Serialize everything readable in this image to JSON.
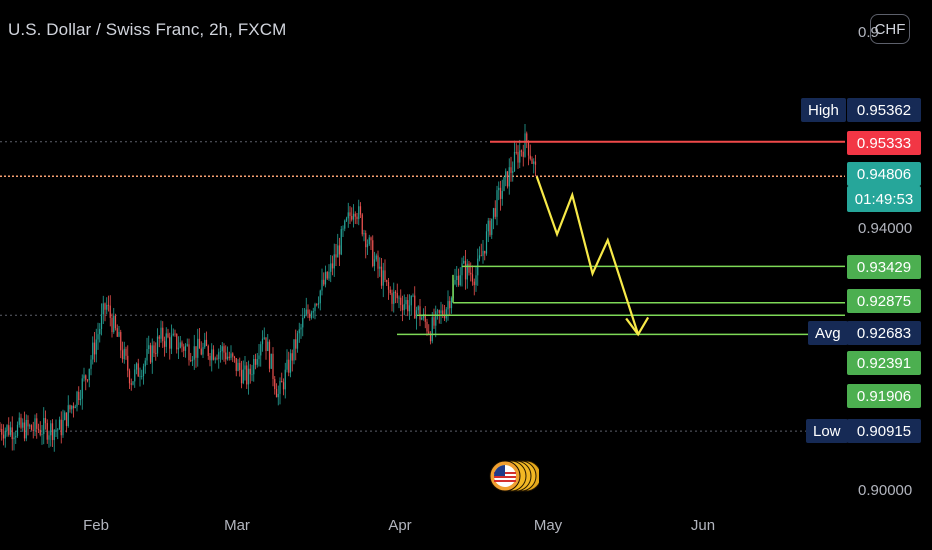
{
  "header": {
    "title": "U.S. Dollar / Swiss Franc, 2h, FXCM",
    "currency_button": "CHF"
  },
  "price_axis": {
    "visible_ticks": [
      "0.94000",
      "0.90000"
    ],
    "partial_top": "0.9",
    "partial_ticks_count_hidden": true
  },
  "labels": {
    "high_tag": "High",
    "high_value": "0.95362",
    "red_value": "0.95333",
    "current_value": "0.94806",
    "countdown": "01:49:53",
    "level1": "0.93429",
    "level2": "0.92875",
    "avg_tag": "Avg",
    "avg_value": "0.92683",
    "level3": "0.92391",
    "level4": "0.91906",
    "low_tag": "Low",
    "low_value": "0.90915"
  },
  "colors": {
    "background": "#000000",
    "up_candle": "#26a69a",
    "down_candle": "#ef5350",
    "level_line": "#7ed957",
    "resistance_line": "#f04a4a",
    "current_price_line": "#f7a072",
    "forecast_arrow": "#f7e948",
    "green_label": "#4caf50",
    "teal_label": "#26a69a",
    "red_label": "#f23645",
    "navy_tag": "#162a55"
  },
  "chart_data": {
    "type": "candlestick",
    "title": "U.S. Dollar / Swiss Franc, 2h, FXCM",
    "x_months": [
      "Feb",
      "Mar",
      "Apr",
      "May",
      "Jun"
    ],
    "y_range": [
      0.8985,
      0.9595
    ],
    "key_prices": {
      "high": 0.95362,
      "resistance": 0.95333,
      "current": 0.94806,
      "support_1": 0.93429,
      "support_2": 0.92875,
      "average": 0.92683,
      "support_3": 0.92391,
      "level_4": 0.91906,
      "low": 0.90915
    },
    "price_anchors": [
      [
        "Jan 25",
        0.9095
      ],
      [
        "Jan 30",
        0.9175
      ],
      [
        "Feb 3",
        0.9285
      ],
      [
        "Feb 8",
        0.917
      ],
      [
        "Feb 14",
        0.9235
      ],
      [
        "Feb 20",
        0.9215
      ],
      [
        "Feb 26",
        0.9215
      ],
      [
        "Mar 2",
        0.917
      ],
      [
        "Mar 5",
        0.9245
      ],
      [
        "Mar 8",
        0.9145
      ],
      [
        "Mar 13",
        0.926
      ],
      [
        "Mar 18",
        0.933
      ],
      [
        "Mar 23",
        0.944
      ],
      [
        "Mar 27",
        0.935
      ],
      [
        "Mar 30",
        0.93
      ],
      [
        "Apr 4",
        0.928
      ],
      [
        "Apr 7",
        0.9245
      ],
      [
        "Apr 10",
        0.928
      ],
      [
        "Apr 13",
        0.934
      ],
      [
        "Apr 16",
        0.933
      ],
      [
        "Apr 20",
        0.944
      ],
      [
        "Apr 24",
        0.951
      ],
      [
        "Apr 26",
        0.9536
      ],
      [
        "Apr 28",
        0.948
      ]
    ],
    "forecast_path": [
      [
        "Apr 28",
        0.948
      ],
      [
        "May 2",
        0.9392
      ],
      [
        "May 5",
        0.9452
      ],
      [
        "May 9",
        0.9332
      ],
      [
        "May 12",
        0.9383
      ],
      [
        "May 18",
        0.9239
      ]
    ]
  }
}
